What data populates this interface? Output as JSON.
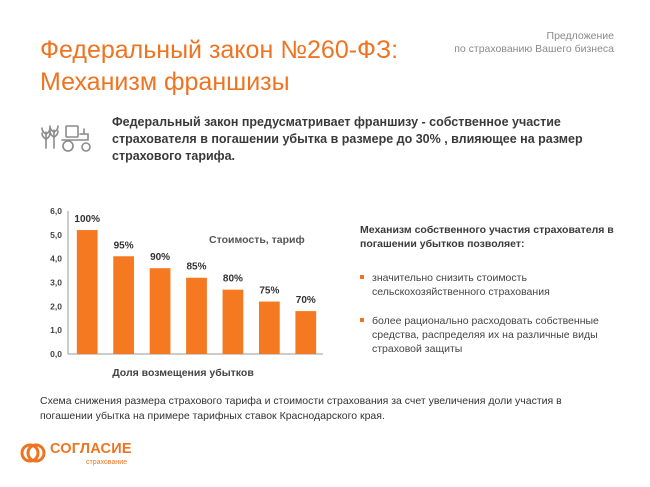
{
  "header": {
    "title_line1": "Федеральный закон №260-ФЗ:",
    "title_line2": "Механизм франшизы",
    "proposal_line1": "Предложение",
    "proposal_line2": "по страхованию Вашего бизнеса"
  },
  "lead": {
    "icon": "tractor-wheat-icon",
    "text": "Федеральный закон предусматривает франшизу - собственное участие страхователя в погашении убытка в размере до 30% , влияющее на размер страхового тарифа."
  },
  "chart_data": {
    "type": "bar",
    "categories": [
      "100%",
      "95%",
      "90%",
      "85%",
      "80%",
      "75%",
      "70%"
    ],
    "values": [
      5.2,
      4.1,
      3.6,
      3.2,
      2.7,
      2.2,
      1.8
    ],
    "data_labels": [
      "100%",
      "95%",
      "90%",
      "85%",
      "80%",
      "75%",
      "70%"
    ],
    "ylim": [
      0,
      6
    ],
    "yticks": [
      "0,0",
      "1,0",
      "2,0",
      "3,0",
      "4,0",
      "5,0",
      "6,0"
    ],
    "series_label": "Стоимость, тариф",
    "xlabel": "Доля возмещения убытков",
    "bar_color": "#f47920",
    "grid": false
  },
  "mechanism": {
    "heading": "Механизм собственного участия страхователя в погашении убытков позволяет:",
    "bullets": [
      "значительно снизить стоимость сельскохозяйственного страхования",
      "более рационально расходовать собственные средства, распределяя их на различные виды страховой защиты"
    ]
  },
  "caption": "Схема снижения размера страхового тарифа и стоимости страхования за счет увеличения доли участия в погашении убытка на примере тарифных ставок Краснодарского края.",
  "logo": {
    "name": "СОГЛАСИЕ",
    "sub": "страхование",
    "color": "#ee7421"
  }
}
